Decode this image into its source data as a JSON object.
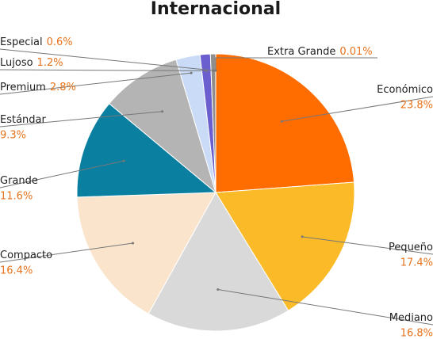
{
  "chart_data": {
    "type": "pie",
    "title": "Internacional",
    "categories": [
      "Económico",
      "Pequeño",
      "Mediano",
      "Compacto",
      "Grande",
      "Estándar",
      "Premium",
      "Lujoso",
      "Especial",
      "Extra Grande"
    ],
    "values": [
      23.8,
      17.4,
      16.8,
      16.4,
      11.6,
      9.3,
      2.8,
      1.2,
      0.6,
      0.01
    ],
    "value_labels": [
      "23.8%",
      "17.4%",
      "16.8%",
      "16.4%",
      "11.6%",
      "9.3%",
      "2.8%",
      "1.2%",
      "0.6%",
      "0.01%"
    ],
    "colors": [
      "#ff6d00",
      "#fbbb29",
      "#d9d9d9",
      "#fae4cb",
      "#0a7fa0",
      "#b4b4b4",
      "#c9dbf6",
      "#6b5fd0",
      "#8e8e8e",
      "#f3a36b"
    ]
  }
}
